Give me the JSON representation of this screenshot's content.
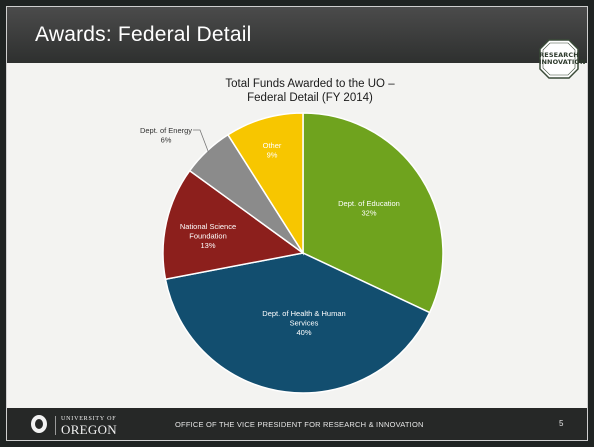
{
  "slide": {
    "title": "Awards: Federal Detail",
    "badge_lines": [
      "RESEARCH",
      "INNOVATION"
    ],
    "footer_text": "OFFICE OF THE VICE PRESIDENT FOR RESEARCH & INNOVATION",
    "page_number": "5",
    "logo": {
      "university_of": "UNIVERSITY OF",
      "oregon": "OREGON"
    }
  },
  "colors": {
    "education": "#6fa31e",
    "health": "#124e6f",
    "nsf": "#8c1f1c",
    "energy": "#8b8b8b",
    "other": "#f7c600"
  },
  "chart_data": {
    "type": "pie",
    "title": "Total Funds Awarded to the UO – Federal Detail (FY 2014)",
    "title_lines": [
      "Total Funds Awarded to the UO –",
      "Federal Detail (FY 2014)"
    ],
    "slices": [
      {
        "name": "Dept. of Education",
        "label_lines": [
          "Dept. of Education"
        ],
        "pct_label": "32%",
        "value": 32,
        "color_key": "education"
      },
      {
        "name": "Dept. of Health & Human Services",
        "label_lines": [
          "Dept. of Health & Human",
          "Services"
        ],
        "pct_label": "40%",
        "value": 40,
        "color_key": "health"
      },
      {
        "name": "National Science Foundation",
        "label_lines": [
          "National Science",
          "Foundation"
        ],
        "pct_label": "13%",
        "value": 13,
        "color_key": "nsf"
      },
      {
        "name": "Dept. of Energy",
        "label_lines": [
          "Dept. of Energy"
        ],
        "pct_label": "6%",
        "value": 6,
        "color_key": "energy"
      },
      {
        "name": "Other",
        "label_lines": [
          "Other"
        ],
        "pct_label": "9%",
        "value": 9,
        "color_key": "other"
      }
    ]
  }
}
